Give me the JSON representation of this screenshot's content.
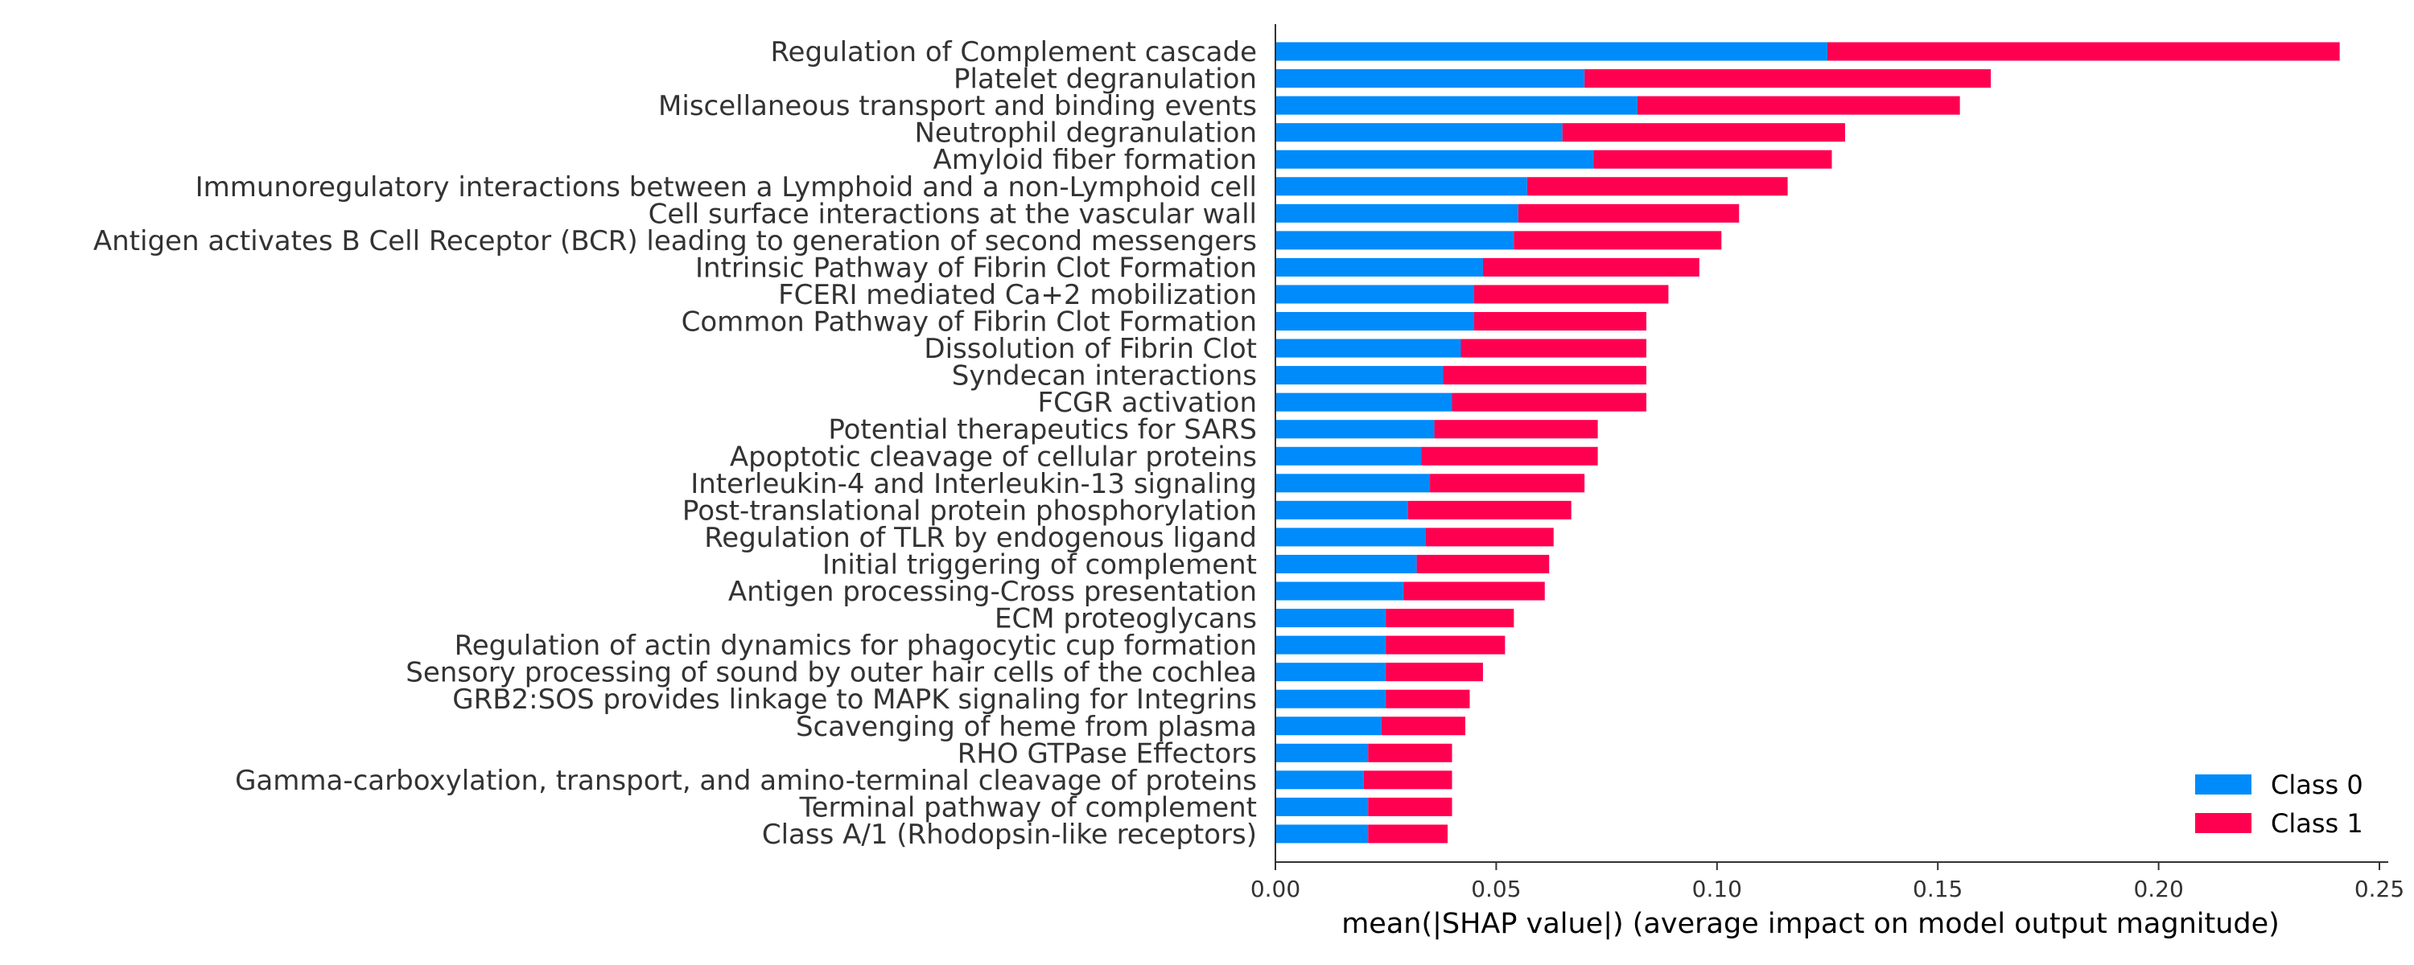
{
  "chart_data": {
    "type": "bar",
    "orientation": "horizontal",
    "stacked": true,
    "title": "",
    "xlabel": "mean(|SHAP value|) (average impact on model output magnitude)",
    "ylabel": "",
    "xlim": [
      0,
      0.252
    ],
    "xticks": [
      0.0,
      0.05,
      0.1,
      0.15,
      0.2,
      0.25
    ],
    "xtick_labels": [
      "0.00",
      "0.05",
      "0.10",
      "0.15",
      "0.20",
      "0.25"
    ],
    "grid": false,
    "legend_position": "bottom-right",
    "categories": [
      "Regulation of Complement cascade",
      "Platelet degranulation ",
      "Miscellaneous transport and binding events",
      "Neutrophil degranulation",
      "Amyloid fiber formation",
      "Immunoregulatory interactions between a Lymphoid and a non-Lymphoid cell",
      "Cell surface interactions at the vascular wall",
      "Antigen activates B Cell Receptor (BCR) leading to generation of second messengers",
      "Intrinsic Pathway of Fibrin Clot Formation",
      "FCERI mediated Ca+2 mobilization",
      "Common Pathway of Fibrin Clot Formation",
      "Dissolution of Fibrin Clot",
      "Syndecan interactions",
      "FCGR activation",
      "Potential therapeutics for SARS",
      "Apoptotic cleavage of cellular proteins",
      "Interleukin-4 and Interleukin-13 signaling",
      "Post-translational protein phosphorylation",
      "Regulation of TLR by endogenous ligand",
      "Initial triggering of complement",
      "Antigen processing-Cross presentation",
      "ECM proteoglycans",
      "Regulation of actin dynamics for phagocytic cup formation",
      "Sensory processing of sound by outer hair cells of the cochlea",
      "GRB2:SOS provides linkage to MAPK signaling for Integrins ",
      "Scavenging of heme from plasma",
      "RHO GTPase Effectors",
      "Gamma-carboxylation, transport, and amino-terminal cleavage of proteins",
      "Terminal pathway of complement",
      "Class A/1 (Rhodopsin-like receptors)"
    ],
    "series": [
      {
        "name": "Class 0",
        "color": "#008bfb",
        "values": [
          0.125,
          0.07,
          0.082,
          0.065,
          0.072,
          0.057,
          0.055,
          0.054,
          0.047,
          0.045,
          0.045,
          0.042,
          0.038,
          0.04,
          0.036,
          0.033,
          0.035,
          0.03,
          0.034,
          0.032,
          0.029,
          0.025,
          0.025,
          0.025,
          0.025,
          0.024,
          0.021,
          0.02,
          0.021,
          0.021
        ]
      },
      {
        "name": "Class 1",
        "color": "#ff0051",
        "values": [
          0.116,
          0.092,
          0.073,
          0.064,
          0.054,
          0.059,
          0.05,
          0.047,
          0.049,
          0.044,
          0.039,
          0.042,
          0.046,
          0.044,
          0.037,
          0.04,
          0.035,
          0.037,
          0.029,
          0.03,
          0.032,
          0.029,
          0.027,
          0.022,
          0.019,
          0.019,
          0.019,
          0.02,
          0.019,
          0.018
        ]
      }
    ]
  }
}
